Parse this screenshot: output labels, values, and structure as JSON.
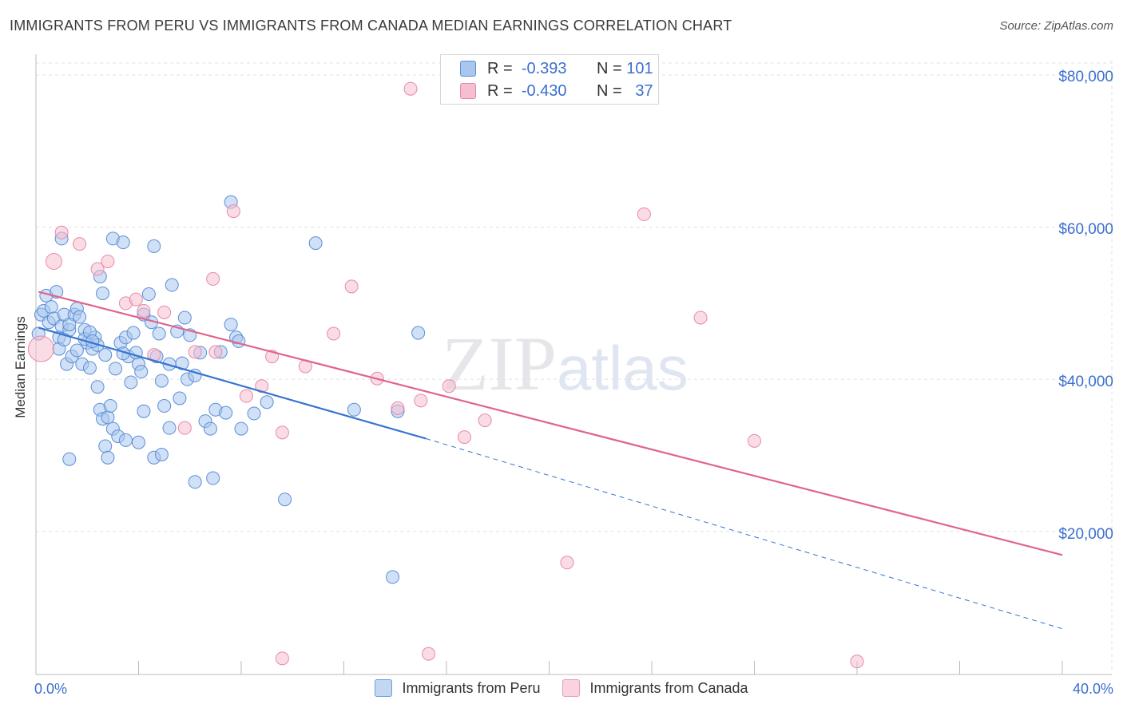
{
  "title": "IMMIGRANTS FROM PERU VS IMMIGRANTS FROM CANADA MEDIAN EARNINGS CORRELATION CHART",
  "source": "Source: ZipAtlas.com",
  "watermark": {
    "zip": "ZIP",
    "atlas": "atlas"
  },
  "legend_top": {
    "peru": {
      "r_label": "R =",
      "r_value": "-0.393",
      "n_label": "N =",
      "n_value": "101"
    },
    "canada": {
      "r_label": "R =",
      "r_value": "-0.430",
      "n_label": "N =",
      "n_value": "37"
    }
  },
  "legend_bottom": {
    "peru": "Immigrants from Peru",
    "canada": "Immigrants from Canada"
  },
  "colors": {
    "peru_fill": "#a9c6ee",
    "peru_stroke": "#5b8fd6",
    "peru_line": "#3574d0",
    "canada_fill": "#f6bfd0",
    "canada_stroke": "#e889a8",
    "canada_line": "#e0648e",
    "tick_text": "#3b6fcf",
    "grid": "#e2e2e2"
  },
  "chart_data": {
    "type": "scatter",
    "title": "IMMIGRANTS FROM PERU VS IMMIGRANTS FROM CANADA MEDIAN EARNINGS CORRELATION CHART",
    "xlabel": "",
    "ylabel": "Median Earnings",
    "xlim": [
      0,
      40
    ],
    "ylim": [
      1500,
      82000
    ],
    "x_tick_labels": [
      "0.0%",
      "40.0%"
    ],
    "y_ticks": [
      20000,
      40000,
      60000,
      80000
    ],
    "y_tick_labels": [
      "$20,000",
      "$40,000",
      "$60,000",
      "$80,000"
    ],
    "grid": true,
    "legend": "top-center",
    "series": [
      {
        "name": "Immigrants from Peru",
        "points": [
          [
            0.1,
            46000
          ],
          [
            0.2,
            48500
          ],
          [
            0.3,
            49000
          ],
          [
            0.4,
            51000
          ],
          [
            0.5,
            47500
          ],
          [
            0.6,
            49500
          ],
          [
            0.7,
            48000
          ],
          [
            0.8,
            51500
          ],
          [
            0.9,
            45500
          ],
          [
            1.0,
            47000
          ],
          [
            1.1,
            48500
          ],
          [
            1.2,
            42000
          ],
          [
            1.3,
            46500
          ],
          [
            1.4,
            43000
          ],
          [
            1.5,
            48500
          ],
          [
            1.6,
            49300
          ],
          [
            1.7,
            48200
          ],
          [
            1.8,
            42000
          ],
          [
            1.9,
            46500
          ],
          [
            2.0,
            44800
          ],
          [
            2.1,
            41500
          ],
          [
            2.2,
            44000
          ],
          [
            2.3,
            45500
          ],
          [
            2.4,
            39000
          ],
          [
            2.5,
            36000
          ],
          [
            2.6,
            34800
          ],
          [
            2.7,
            31200
          ],
          [
            2.8,
            35000
          ],
          [
            2.9,
            36500
          ],
          [
            3.0,
            33500
          ],
          [
            1.0,
            58500
          ],
          [
            2.5,
            53500
          ],
          [
            2.6,
            51300
          ],
          [
            3.0,
            58500
          ],
          [
            3.4,
            58000
          ],
          [
            3.3,
            44800
          ],
          [
            3.5,
            45500
          ],
          [
            3.6,
            43000
          ],
          [
            3.8,
            46100
          ],
          [
            3.9,
            43500
          ],
          [
            4.0,
            42000
          ],
          [
            4.1,
            41000
          ],
          [
            4.2,
            48500
          ],
          [
            4.4,
            51200
          ],
          [
            4.5,
            47500
          ],
          [
            4.6,
            57500
          ],
          [
            4.7,
            43000
          ],
          [
            4.8,
            46000
          ],
          [
            4.9,
            39800
          ],
          [
            5.0,
            36500
          ],
          [
            5.2,
            42000
          ],
          [
            5.3,
            52400
          ],
          [
            5.5,
            46300
          ],
          [
            5.6,
            37500
          ],
          [
            5.8,
            48100
          ],
          [
            5.9,
            40000
          ],
          [
            6.0,
            45800
          ],
          [
            6.2,
            40500
          ],
          [
            6.4,
            43500
          ],
          [
            6.6,
            34500
          ],
          [
            6.8,
            33500
          ],
          [
            7.0,
            36000
          ],
          [
            7.2,
            43600
          ],
          [
            7.4,
            35600
          ],
          [
            7.6,
            47200
          ],
          [
            7.8,
            45500
          ],
          [
            7.9,
            45000
          ],
          [
            8.0,
            33500
          ],
          [
            8.5,
            35500
          ],
          [
            9.0,
            37000
          ],
          [
            1.3,
            29500
          ],
          [
            2.8,
            29700
          ],
          [
            3.2,
            32500
          ],
          [
            3.5,
            32000
          ],
          [
            4.0,
            31700
          ],
          [
            4.6,
            29700
          ],
          [
            5.2,
            33600
          ],
          [
            6.2,
            26500
          ],
          [
            6.9,
            27000
          ],
          [
            9.7,
            24200
          ],
          [
            7.6,
            63300
          ],
          [
            10.9,
            57900
          ],
          [
            12.4,
            36000
          ],
          [
            14.1,
            35800
          ],
          [
            14.9,
            46100
          ],
          [
            13.9,
            14000
          ],
          [
            0.9,
            44000
          ],
          [
            1.1,
            45200
          ],
          [
            1.3,
            47200
          ],
          [
            1.6,
            43800
          ],
          [
            1.9,
            45300
          ],
          [
            2.1,
            46200
          ],
          [
            2.4,
            44500
          ],
          [
            2.7,
            43200
          ],
          [
            3.1,
            41400
          ],
          [
            3.4,
            43400
          ],
          [
            3.7,
            39600
          ],
          [
            4.2,
            35800
          ],
          [
            4.9,
            30100
          ],
          [
            5.7,
            42100
          ],
          [
            2.2,
            45000
          ]
        ],
        "trend_solid": [
          [
            0.1,
            46800
          ],
          [
            15.2,
            32200
          ]
        ],
        "trend_dashed": [
          [
            15.2,
            32200
          ],
          [
            40.0,
            7200
          ]
        ]
      },
      {
        "name": "Immigrants from Canada",
        "points": [
          [
            0.2,
            44000
          ],
          [
            1.0,
            59300
          ],
          [
            0.7,
            55500
          ],
          [
            1.7,
            57800
          ],
          [
            2.4,
            54500
          ],
          [
            2.8,
            55500
          ],
          [
            3.5,
            50000
          ],
          [
            3.9,
            50500
          ],
          [
            4.2,
            49000
          ],
          [
            5.0,
            48800
          ],
          [
            4.6,
            43200
          ],
          [
            5.8,
            33600
          ],
          [
            6.2,
            43600
          ],
          [
            6.9,
            53200
          ],
          [
            7.0,
            43600
          ],
          [
            7.7,
            62100
          ],
          [
            8.2,
            37800
          ],
          [
            8.8,
            39100
          ],
          [
            9.2,
            43000
          ],
          [
            9.6,
            33000
          ],
          [
            10.5,
            41700
          ],
          [
            11.6,
            46000
          ],
          [
            12.3,
            52200
          ],
          [
            13.3,
            40100
          ],
          [
            14.1,
            36200
          ],
          [
            15.0,
            37200
          ],
          [
            16.1,
            39100
          ],
          [
            16.7,
            32400
          ],
          [
            17.5,
            34600
          ],
          [
            20.7,
            15900
          ],
          [
            23.7,
            61700
          ],
          [
            25.9,
            48100
          ],
          [
            28.0,
            31900
          ],
          [
            14.6,
            78200
          ],
          [
            9.6,
            3300
          ],
          [
            15.3,
            3900
          ],
          [
            32.0,
            2900
          ]
        ],
        "trend_solid": [
          [
            0.1,
            51500
          ],
          [
            40.0,
            16900
          ]
        ]
      }
    ]
  }
}
